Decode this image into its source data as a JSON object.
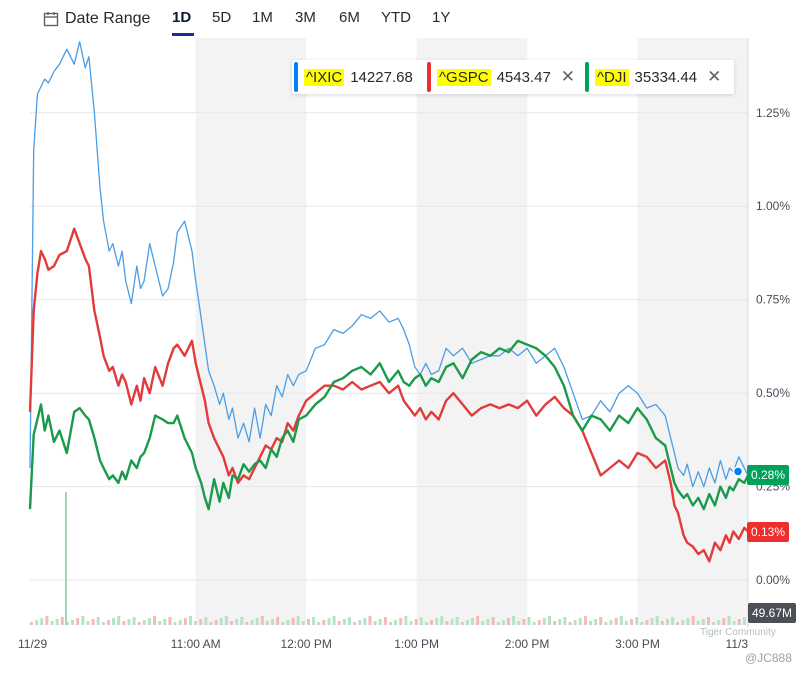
{
  "toolbar": {
    "date_range_label": "Date Range",
    "tabs": [
      "1D",
      "5D",
      "1M",
      "3M",
      "6M",
      "YTD",
      "1Y"
    ],
    "active_tab": "1D"
  },
  "legend": [
    {
      "symbol": "^IXIC",
      "price": "14227.68",
      "color": "#0081f2",
      "closable": false
    },
    {
      "symbol": "^GSPC",
      "price": "4543.47",
      "color": "#ec2e2e",
      "closable": true
    },
    {
      "symbol": "^DJI",
      "price": "35334.44",
      "color": "#00a25b",
      "closable": true
    }
  ],
  "close_glyph": "✕",
  "badges": [
    {
      "series": "^DJI",
      "text": "0.28%",
      "color": "#00a25b"
    },
    {
      "series": "^GSPC",
      "text": "0.13%",
      "color": "#ec2e2e"
    }
  ],
  "volume_label": "49.67M",
  "watermark": {
    "line1": "Tiger Community",
    "line2": "@JC888"
  },
  "chart_data": {
    "type": "line",
    "y_ticks": [
      "0.00%",
      "0.25%",
      "0.50%",
      "0.75%",
      "1.00%",
      "1.25%"
    ],
    "y_tick_values": [
      0,
      0.25,
      0.5,
      0.75,
      1.0,
      1.25
    ],
    "ylim": [
      -0.12,
      1.45
    ],
    "x_ticks": [
      "11/29",
      "11:00 AM",
      "12:00 PM",
      "1:00 PM",
      "2:00 PM",
      "3:00 PM",
      "11/3"
    ],
    "x_tick_minutes": [
      0,
      90,
      150,
      210,
      270,
      330,
      390
    ],
    "xlim_minutes": [
      0,
      390
    ],
    "grid": true,
    "legend_placement": "top-right",
    "series": [
      {
        "name": "^IXIC",
        "color": "#4a9de6",
        "x": [
          0,
          2,
          4,
          6,
          8,
          10,
          13,
          16,
          20,
          24,
          27,
          30,
          32,
          35,
          38,
          40,
          43,
          45,
          48,
          50,
          52,
          55,
          58,
          60,
          62,
          65,
          68,
          72,
          75,
          78,
          80,
          84,
          88,
          90,
          93,
          95,
          97,
          100,
          103,
          105,
          108,
          110,
          113,
          116,
          119,
          122,
          125,
          128,
          131,
          134,
          137,
          140,
          143,
          146,
          150,
          155,
          160,
          165,
          170,
          175,
          180,
          185,
          190,
          195,
          200,
          203,
          206,
          209,
          212,
          215,
          218,
          222,
          226,
          230,
          235,
          240,
          245,
          250,
          255,
          260,
          265,
          270,
          275,
          280,
          285,
          290,
          295,
          300,
          305,
          310,
          315,
          320,
          325,
          330,
          335,
          340,
          345,
          348,
          350,
          352,
          355,
          357,
          360,
          363,
          366,
          369,
          372,
          375,
          378,
          380,
          382,
          385,
          388,
          390
        ],
        "values": [
          0.3,
          1.15,
          1.3,
          1.32,
          1.34,
          1.33,
          1.36,
          1.38,
          1.42,
          1.38,
          1.44,
          1.37,
          1.4,
          1.25,
          1.05,
          0.96,
          0.88,
          0.9,
          0.84,
          0.88,
          0.8,
          0.74,
          0.84,
          0.78,
          0.8,
          0.9,
          0.84,
          0.76,
          0.78,
          0.85,
          0.93,
          0.96,
          0.88,
          0.8,
          0.7,
          0.63,
          0.56,
          0.52,
          0.47,
          0.5,
          0.43,
          0.46,
          0.38,
          0.42,
          0.37,
          0.46,
          0.38,
          0.47,
          0.44,
          0.52,
          0.49,
          0.55,
          0.52,
          0.55,
          0.56,
          0.62,
          0.63,
          0.67,
          0.66,
          0.68,
          0.71,
          0.7,
          0.72,
          0.69,
          0.7,
          0.67,
          0.63,
          0.57,
          0.55,
          0.58,
          0.55,
          0.56,
          0.62,
          0.6,
          0.62,
          0.58,
          0.59,
          0.6,
          0.6,
          0.62,
          0.6,
          0.62,
          0.58,
          0.6,
          0.62,
          0.57,
          0.5,
          0.43,
          0.44,
          0.48,
          0.45,
          0.5,
          0.52,
          0.5,
          0.46,
          0.47,
          0.44,
          0.38,
          0.34,
          0.3,
          0.28,
          0.31,
          0.25,
          0.29,
          0.25,
          0.3,
          0.26,
          0.32,
          0.27,
          0.3,
          0.29,
          0.33,
          0.3,
          0.28
        ]
      },
      {
        "name": "^GSPC",
        "color": "#e23b3b",
        "x": [
          0,
          2,
          4,
          6,
          8,
          10,
          13,
          16,
          20,
          24,
          27,
          30,
          32,
          35,
          38,
          40,
          43,
          45,
          48,
          50,
          52,
          55,
          58,
          60,
          62,
          65,
          68,
          72,
          75,
          78,
          80,
          84,
          88,
          90,
          93,
          95,
          97,
          100,
          103,
          105,
          108,
          110,
          113,
          116,
          119,
          122,
          125,
          128,
          131,
          134,
          137,
          140,
          143,
          146,
          150,
          155,
          160,
          165,
          170,
          175,
          180,
          185,
          190,
          195,
          200,
          203,
          206,
          209,
          212,
          215,
          218,
          222,
          226,
          230,
          235,
          240,
          245,
          250,
          255,
          260,
          265,
          270,
          275,
          280,
          285,
          290,
          295,
          300,
          305,
          310,
          315,
          320,
          325,
          330,
          335,
          340,
          345,
          348,
          350,
          352,
          355,
          357,
          360,
          363,
          366,
          369,
          372,
          375,
          378,
          380,
          382,
          385,
          388,
          390
        ],
        "values": [
          0.45,
          0.72,
          0.82,
          0.88,
          0.86,
          0.83,
          0.84,
          0.87,
          0.88,
          0.94,
          0.9,
          0.86,
          0.84,
          0.72,
          0.65,
          0.6,
          0.56,
          0.57,
          0.52,
          0.55,
          0.53,
          0.47,
          0.52,
          0.48,
          0.54,
          0.5,
          0.57,
          0.52,
          0.58,
          0.62,
          0.63,
          0.6,
          0.64,
          0.58,
          0.52,
          0.48,
          0.42,
          0.38,
          0.35,
          0.33,
          0.28,
          0.3,
          0.26,
          0.28,
          0.27,
          0.3,
          0.33,
          0.36,
          0.35,
          0.38,
          0.37,
          0.42,
          0.4,
          0.44,
          0.48,
          0.5,
          0.52,
          0.52,
          0.51,
          0.53,
          0.51,
          0.52,
          0.53,
          0.5,
          0.52,
          0.48,
          0.46,
          0.44,
          0.46,
          0.43,
          0.45,
          0.43,
          0.48,
          0.5,
          0.47,
          0.44,
          0.46,
          0.47,
          0.46,
          0.47,
          0.46,
          0.48,
          0.44,
          0.47,
          0.49,
          0.46,
          0.44,
          0.4,
          0.34,
          0.28,
          0.3,
          0.32,
          0.3,
          0.34,
          0.33,
          0.3,
          0.32,
          0.26,
          0.2,
          0.18,
          0.12,
          0.1,
          0.09,
          0.07,
          0.08,
          0.05,
          0.1,
          0.08,
          0.12,
          0.1,
          0.13,
          0.11,
          0.14,
          0.13
        ]
      },
      {
        "name": "^DJI",
        "color": "#1a9a4b",
        "x": [
          0,
          2,
          4,
          6,
          8,
          10,
          13,
          16,
          20,
          24,
          27,
          30,
          32,
          35,
          38,
          40,
          43,
          45,
          48,
          50,
          52,
          55,
          58,
          60,
          62,
          65,
          68,
          72,
          75,
          78,
          80,
          84,
          88,
          90,
          93,
          95,
          97,
          100,
          103,
          105,
          108,
          110,
          113,
          116,
          119,
          122,
          125,
          128,
          131,
          134,
          137,
          140,
          143,
          146,
          150,
          155,
          160,
          165,
          170,
          175,
          180,
          185,
          190,
          195,
          200,
          203,
          206,
          209,
          212,
          215,
          218,
          222,
          226,
          230,
          235,
          240,
          245,
          250,
          255,
          260,
          265,
          270,
          275,
          280,
          285,
          290,
          295,
          300,
          305,
          310,
          315,
          320,
          325,
          330,
          335,
          340,
          345,
          348,
          350,
          352,
          355,
          357,
          360,
          363,
          366,
          369,
          372,
          375,
          378,
          380,
          382,
          385,
          388,
          390
        ],
        "values": [
          0.19,
          0.39,
          0.43,
          0.47,
          0.4,
          0.44,
          0.37,
          0.4,
          0.34,
          0.45,
          0.46,
          0.44,
          0.43,
          0.38,
          0.32,
          0.3,
          0.27,
          0.28,
          0.26,
          0.29,
          0.27,
          0.32,
          0.3,
          0.33,
          0.34,
          0.38,
          0.44,
          0.43,
          0.42,
          0.42,
          0.44,
          0.38,
          0.34,
          0.3,
          0.26,
          0.22,
          0.19,
          0.27,
          0.21,
          0.26,
          0.22,
          0.28,
          0.27,
          0.31,
          0.29,
          0.31,
          0.32,
          0.3,
          0.35,
          0.33,
          0.38,
          0.4,
          0.37,
          0.43,
          0.44,
          0.47,
          0.49,
          0.53,
          0.54,
          0.56,
          0.57,
          0.55,
          0.58,
          0.53,
          0.56,
          0.53,
          0.52,
          0.54,
          0.55,
          0.52,
          0.54,
          0.53,
          0.57,
          0.58,
          0.54,
          0.59,
          0.61,
          0.6,
          0.62,
          0.61,
          0.64,
          0.63,
          0.62,
          0.6,
          0.57,
          0.52,
          0.44,
          0.4,
          0.44,
          0.43,
          0.4,
          0.44,
          0.42,
          0.46,
          0.43,
          0.38,
          0.36,
          0.3,
          0.26,
          0.24,
          0.22,
          0.23,
          0.2,
          0.22,
          0.19,
          0.23,
          0.2,
          0.25,
          0.22,
          0.25,
          0.24,
          0.27,
          0.26,
          0.28
        ]
      }
    ]
  }
}
